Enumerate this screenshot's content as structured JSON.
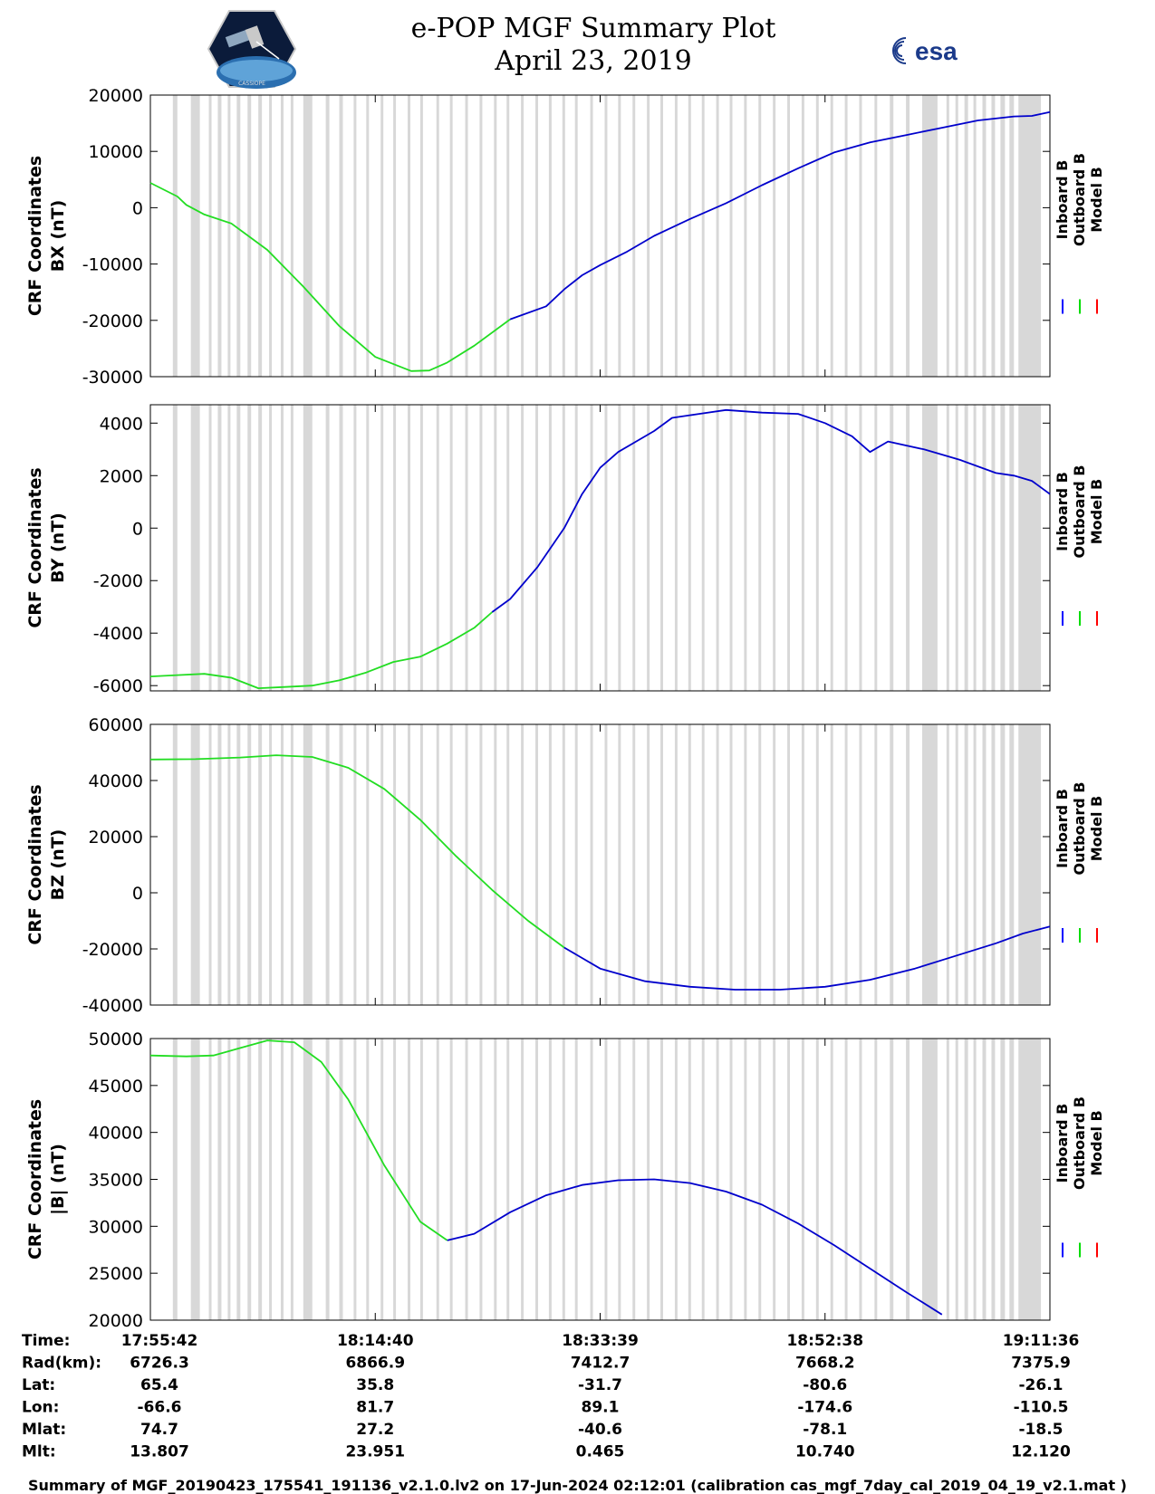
{
  "header": {
    "title_line1": "e-POP MGF Summary Plot",
    "title_line2": "April 23, 2019",
    "logo_left_text": "CASSIOPE",
    "logo_right_text": "esa"
  },
  "legend": {
    "entries": [
      {
        "label": "Inboard B",
        "color": "#0000ff"
      },
      {
        "label": "Outboard B",
        "color": "#00dd00"
      },
      {
        "label": "Model B",
        "color": "#ff0000"
      }
    ]
  },
  "colors": {
    "inboard": "#0000cc",
    "outboard": "#22dd22",
    "model": "#ee0000",
    "gap": "#d8d8d8"
  },
  "gap_intervals_fraction": [
    [
      0.025,
      0.03
    ],
    [
      0.045,
      0.055
    ],
    [
      0.065,
      0.068
    ],
    [
      0.075,
      0.079
    ],
    [
      0.086,
      0.089
    ],
    [
      0.096,
      0.1
    ],
    [
      0.108,
      0.112
    ],
    [
      0.12,
      0.124
    ],
    [
      0.132,
      0.135
    ],
    [
      0.145,
      0.148
    ],
    [
      0.156,
      0.159
    ],
    [
      0.17,
      0.18
    ],
    [
      0.195,
      0.199
    ],
    [
      0.21,
      0.214
    ],
    [
      0.226,
      0.229
    ],
    [
      0.24,
      0.243
    ],
    [
      0.256,
      0.259
    ],
    [
      0.27,
      0.273
    ],
    [
      0.286,
      0.289
    ],
    [
      0.3,
      0.303
    ],
    [
      0.318,
      0.321
    ],
    [
      0.333,
      0.336
    ],
    [
      0.35,
      0.353
    ],
    [
      0.366,
      0.369
    ],
    [
      0.382,
      0.385
    ],
    [
      0.396,
      0.399
    ],
    [
      0.412,
      0.415
    ],
    [
      0.428,
      0.431
    ],
    [
      0.443,
      0.446
    ],
    [
      0.458,
      0.461
    ],
    [
      0.472,
      0.475
    ],
    [
      0.489,
      0.492
    ],
    [
      0.505,
      0.508
    ],
    [
      0.52,
      0.523
    ],
    [
      0.536,
      0.539
    ],
    [
      0.552,
      0.555
    ],
    [
      0.567,
      0.57
    ],
    [
      0.583,
      0.586
    ],
    [
      0.598,
      0.601
    ],
    [
      0.613,
      0.616
    ],
    [
      0.629,
      0.632
    ],
    [
      0.644,
      0.647
    ],
    [
      0.66,
      0.663
    ],
    [
      0.676,
      0.679
    ],
    [
      0.692,
      0.695
    ],
    [
      0.708,
      0.711
    ],
    [
      0.724,
      0.727
    ],
    [
      0.74,
      0.743
    ],
    [
      0.756,
      0.759
    ],
    [
      0.772,
      0.775
    ],
    [
      0.788,
      0.791
    ],
    [
      0.805,
      0.808
    ],
    [
      0.822,
      0.826
    ],
    [
      0.84,
      0.844
    ],
    [
      0.858,
      0.875
    ],
    [
      0.885,
      0.888
    ],
    [
      0.895,
      0.898
    ],
    [
      0.905,
      0.909
    ],
    [
      0.915,
      0.918
    ],
    [
      0.925,
      0.929
    ],
    [
      0.935,
      0.939
    ],
    [
      0.945,
      0.95
    ],
    [
      0.955,
      0.96
    ],
    [
      0.965,
      0.99
    ]
  ],
  "chart_data": [
    {
      "type": "line",
      "ylabel_line1": "CRF Coordinates",
      "ylabel_line2": "BX (nT)",
      "ylim": [
        -30000,
        20000
      ],
      "yticks": [
        "20000",
        "10000",
        "0",
        "-10000",
        "-20000",
        "-30000"
      ],
      "ytick_values": [
        20000,
        10000,
        0,
        -10000,
        -20000,
        -30000
      ],
      "x_fraction": [
        0,
        0.03,
        0.04,
        0.06,
        0.09,
        0.13,
        0.17,
        0.21,
        0.25,
        0.29,
        0.31,
        0.33,
        0.36,
        0.4,
        0.44,
        0.46,
        0.48,
        0.5,
        0.53,
        0.56,
        0.6,
        0.64,
        0.68,
        0.72,
        0.76,
        0.8,
        0.84,
        0.88,
        0.92,
        0.96,
        0.98,
        1.0
      ],
      "series": [
        {
          "name": "Outboard B",
          "values": [
            4400,
            2000,
            500,
            -1200,
            -2800,
            -7500,
            -14000,
            -21000,
            -26500,
            -29000,
            -28900,
            -27500,
            -24500,
            -19800,
            null,
            null,
            null,
            null,
            null,
            null,
            null,
            null,
            null,
            null,
            null,
            null,
            null,
            null,
            null,
            null,
            null,
            null
          ]
        },
        {
          "name": "Inboard B",
          "values": [
            null,
            null,
            null,
            null,
            null,
            null,
            null,
            null,
            null,
            null,
            null,
            null,
            null,
            -19800,
            -17500,
            -14500,
            -12000,
            -10200,
            -7800,
            -5000,
            -2000,
            800,
            4000,
            7000,
            9800,
            11600,
            12900,
            14200,
            15500,
            16200,
            16300,
            17000
          ]
        }
      ]
    },
    {
      "type": "line",
      "ylabel_line1": "CRF Coordinates",
      "ylabel_line2": "BY (nT)",
      "ylim": [
        -6200,
        4700
      ],
      "yticks": [
        "4000",
        "2000",
        "0",
        "-2000",
        "-4000",
        "-6000"
      ],
      "ytick_values": [
        4000,
        2000,
        0,
        -2000,
        -4000,
        -6000
      ],
      "x_fraction": [
        0,
        0.03,
        0.06,
        0.09,
        0.12,
        0.15,
        0.18,
        0.21,
        0.24,
        0.27,
        0.3,
        0.33,
        0.36,
        0.38,
        0.4,
        0.43,
        0.46,
        0.48,
        0.5,
        0.52,
        0.54,
        0.56,
        0.58,
        0.61,
        0.64,
        0.68,
        0.72,
        0.75,
        0.78,
        0.8,
        0.82,
        0.86,
        0.9,
        0.94,
        0.96,
        0.98,
        1.0
      ],
      "series": [
        {
          "name": "Outboard B",
          "values": [
            -5650,
            -5600,
            -5550,
            -5700,
            -6100,
            -6050,
            -6000,
            -5800,
            -5500,
            -5100,
            -4900,
            -4400,
            -3800,
            -3200,
            null,
            null,
            null,
            null,
            null,
            null,
            null,
            null,
            null,
            null,
            null,
            null,
            null,
            null,
            null,
            null,
            null,
            null,
            null,
            null,
            null,
            null,
            null
          ]
        },
        {
          "name": "Inboard B",
          "values": [
            null,
            null,
            null,
            null,
            null,
            null,
            null,
            null,
            null,
            null,
            null,
            null,
            null,
            -3200,
            -2700,
            -1500,
            0,
            1300,
            2300,
            2900,
            3300,
            3700,
            4200,
            4350,
            4500,
            4400,
            4350,
            4000,
            3500,
            2900,
            3300,
            3000,
            2600,
            2100,
            2000,
            1800,
            1300
          ]
        }
      ]
    },
    {
      "type": "line",
      "ylabel_line1": "CRF Coordinates",
      "ylabel_line2": "BZ (nT)",
      "ylim": [
        -40000,
        60000
      ],
      "yticks": [
        "60000",
        "40000",
        "20000",
        "0",
        "-20000",
        "-40000"
      ],
      "ytick_values": [
        60000,
        40000,
        20000,
        0,
        -20000,
        -40000
      ],
      "x_fraction": [
        0,
        0.05,
        0.1,
        0.14,
        0.18,
        0.22,
        0.26,
        0.3,
        0.34,
        0.38,
        0.42,
        0.46,
        0.5,
        0.55,
        0.6,
        0.65,
        0.7,
        0.75,
        0.8,
        0.85,
        0.9,
        0.94,
        0.97,
        1.0
      ],
      "series": [
        {
          "name": "Outboard B",
          "values": [
            47500,
            47600,
            48200,
            49000,
            48400,
            44500,
            37000,
            26000,
            13000,
            1000,
            -10000,
            -19500,
            null,
            null,
            null,
            null,
            null,
            null,
            null,
            null,
            null,
            null,
            null,
            null
          ]
        },
        {
          "name": "Inboard B",
          "values": [
            null,
            null,
            null,
            null,
            null,
            null,
            null,
            null,
            null,
            null,
            null,
            -19500,
            -27000,
            -31500,
            -33500,
            -34500,
            -34500,
            -33500,
            -31000,
            -27000,
            -22000,
            -18000,
            -14500,
            -12000
          ]
        }
      ]
    },
    {
      "type": "line",
      "ylabel_line1": "CRF Coordinates",
      "ylabel_line2": "|B| (nT)",
      "ylim": [
        20000,
        50000
      ],
      "yticks": [
        "50000",
        "45000",
        "40000",
        "35000",
        "30000",
        "25000",
        "20000"
      ],
      "ytick_values": [
        50000,
        45000,
        40000,
        35000,
        30000,
        25000,
        20000
      ],
      "x_fraction": [
        0,
        0.04,
        0.07,
        0.1,
        0.13,
        0.16,
        0.19,
        0.22,
        0.26,
        0.3,
        0.33,
        0.36,
        0.4,
        0.44,
        0.48,
        0.52,
        0.56,
        0.6,
        0.64,
        0.68,
        0.72,
        0.76,
        0.8,
        0.84,
        0.88,
        0.92,
        0.96,
        1.0
      ],
      "series": [
        {
          "name": "Outboard B",
          "values": [
            48200,
            48100,
            48200,
            49000,
            49800,
            49600,
            47500,
            43500,
            36500,
            30500,
            28500,
            null,
            null,
            null,
            null,
            null,
            null,
            null,
            null,
            null,
            null,
            null,
            null,
            null,
            null,
            null,
            null,
            null
          ]
        },
        {
          "name": "Inboard B",
          "values": [
            null,
            null,
            null,
            null,
            null,
            null,
            null,
            null,
            null,
            null,
            28500,
            29200,
            31500,
            33300,
            34400,
            34900,
            35000,
            34600,
            33700,
            32300,
            30300,
            28000,
            25500,
            23000,
            20600,
            null,
            null,
            null
          ]
        }
      ]
    }
  ],
  "axis_info": {
    "rows": [
      {
        "label": "Time:",
        "values": [
          "17:55:42",
          "18:14:40",
          "18:33:39",
          "18:52:38",
          "19:11:36"
        ]
      },
      {
        "label": "Rad(km):",
        "values": [
          "6726.3",
          "6866.9",
          "7412.7",
          "7668.2",
          "7375.9"
        ]
      },
      {
        "label": "Lat:",
        "values": [
          "65.4",
          "35.8",
          "-31.7",
          "-80.6",
          "-26.1"
        ]
      },
      {
        "label": "Lon:",
        "values": [
          "-66.6",
          "81.7",
          "89.1",
          "-174.6",
          "-110.5"
        ]
      },
      {
        "label": "Mlat:",
        "values": [
          "74.7",
          "27.2",
          "-40.6",
          "-78.1",
          "-18.5"
        ]
      },
      {
        "label": "Mlt:",
        "values": [
          "13.807",
          "23.951",
          "0.465",
          "10.740",
          "12.120"
        ]
      }
    ]
  },
  "footer": {
    "text": "Summary of MGF_20190423_175541_191136_v2.1.0.lv2 on 17-Jun-2024 02:12:01 (calibration cas_mgf_7day_cal_2019_04_19_v2.1.mat )"
  }
}
